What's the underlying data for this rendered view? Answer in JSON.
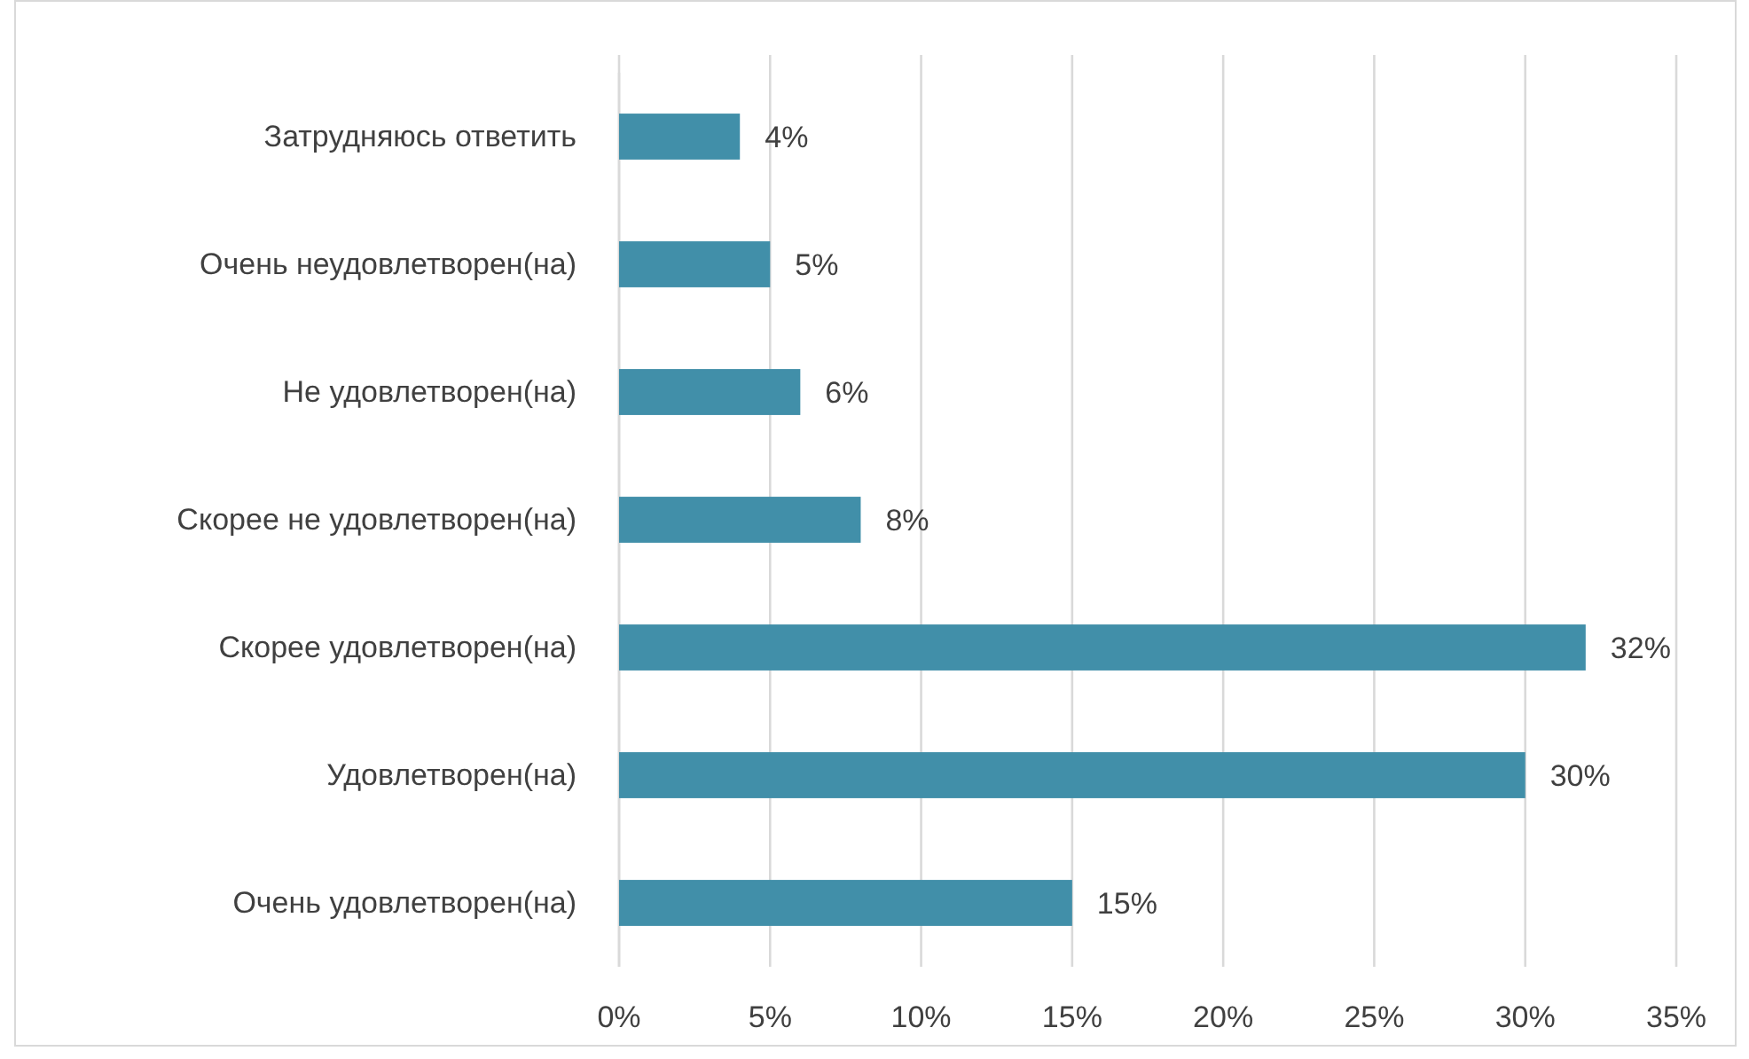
{
  "chart_data": {
    "type": "bar",
    "orientation": "horizontal",
    "categories": [
      "Затрудняюсь ответить",
      "Очень неудовлетворен(на)",
      "Не удовлетворен(на)",
      "Скорее не удовлетворен(на)",
      "Скорее удовлетворен(на)",
      "Удовлетворен(на)",
      "Очень удовлетворен(на)"
    ],
    "values": [
      4,
      5,
      6,
      8,
      32,
      30,
      15
    ],
    "color": "#418fa9",
    "xlim": [
      0,
      35
    ],
    "xticks": [
      {
        "value": 0,
        "label": "0%"
      },
      {
        "value": 5,
        "label": "5%"
      },
      {
        "value": 10,
        "label": "10%"
      },
      {
        "value": 15,
        "label": "15%"
      },
      {
        "value": 20,
        "label": "20%"
      },
      {
        "value": 25,
        "label": "25%"
      },
      {
        "value": 30,
        "label": "30%"
      },
      {
        "value": 35,
        "label": "35%"
      }
    ],
    "value_labels": [
      "4%",
      "5%",
      "6%",
      "8%",
      "32%",
      "30%",
      "15%"
    ],
    "grid": "x"
  }
}
